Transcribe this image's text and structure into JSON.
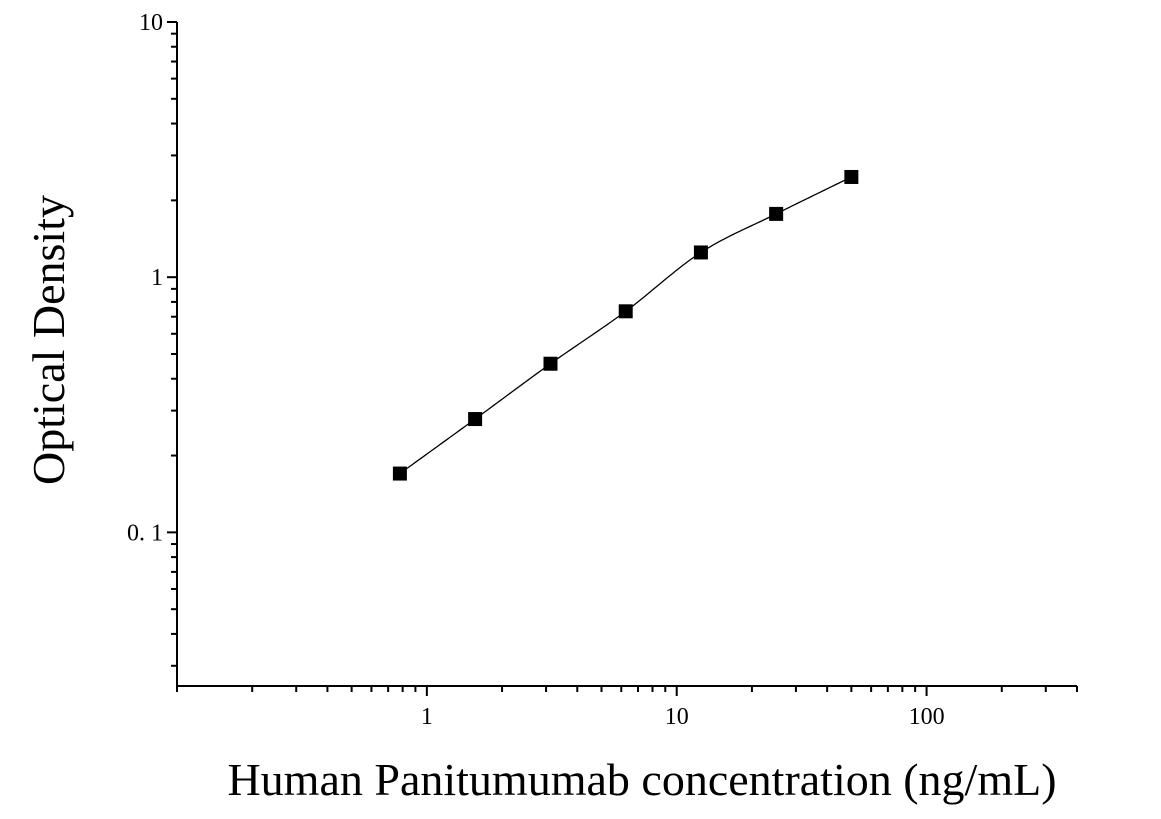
{
  "chart_data": {
    "type": "scatter",
    "title": "",
    "xlabel": "Human Panitumumab concentration (ng/mL)",
    "ylabel": "Optical Density",
    "xscale": "log",
    "yscale": "log",
    "xlim": [
      0.1,
      400
    ],
    "ylim": [
      0.025,
      10
    ],
    "x_ticks": [
      {
        "value": 1,
        "label": "1"
      },
      {
        "value": 10,
        "label": "10"
      },
      {
        "value": 100,
        "label": "100"
      }
    ],
    "y_ticks": [
      {
        "value": 0.1,
        "label": "0. 1"
      },
      {
        "value": 1,
        "label": "1"
      },
      {
        "value": 10,
        "label": "10"
      }
    ],
    "grid": false,
    "legend": "none",
    "marker": "square",
    "fit_line": true,
    "colors": {
      "marker": "#000000",
      "line": "#000000",
      "axis": "#000000"
    },
    "series": [
      {
        "x": [
          0.78,
          1.56,
          3.125,
          6.25,
          12.5,
          25,
          50
        ],
        "y": [
          0.17,
          0.278,
          0.458,
          0.735,
          1.25,
          1.77,
          2.47
        ]
      }
    ]
  }
}
